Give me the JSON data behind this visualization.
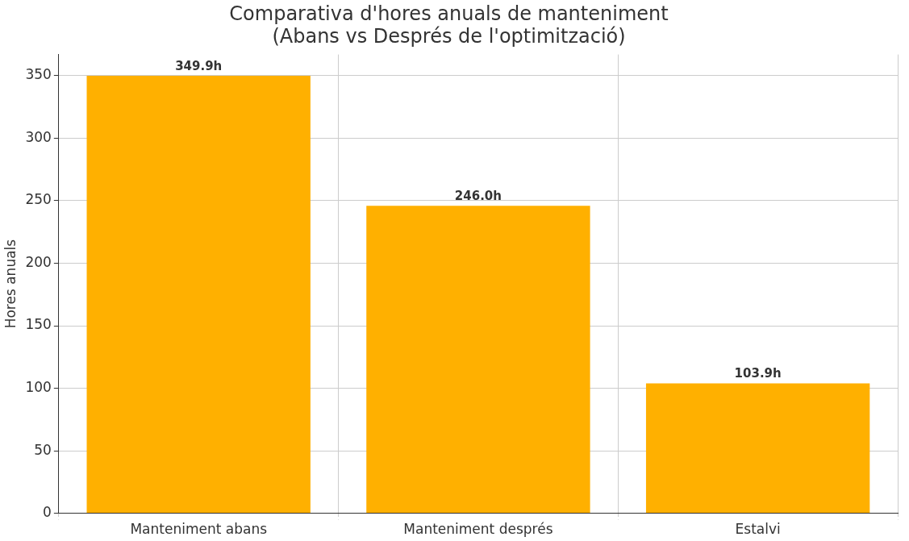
{
  "chart_data": {
    "type": "bar",
    "title": "Comparativa d'hores anuals de manteniment\n(Abans vs Després de l'optimització)",
    "ylabel": "Hores anuals",
    "categories": [
      "Manteniment abans",
      "Manteniment després",
      "Estalvi"
    ],
    "values": [
      349.9,
      246.0,
      103.9
    ],
    "color": "#ffb000",
    "value_labels": [
      "349.9h",
      "246.0h",
      "103.9h"
    ],
    "ylim": [
      0,
      367
    ],
    "yticks": [
      0,
      50,
      100,
      150,
      200,
      250,
      300,
      350
    ],
    "grid": true
  }
}
